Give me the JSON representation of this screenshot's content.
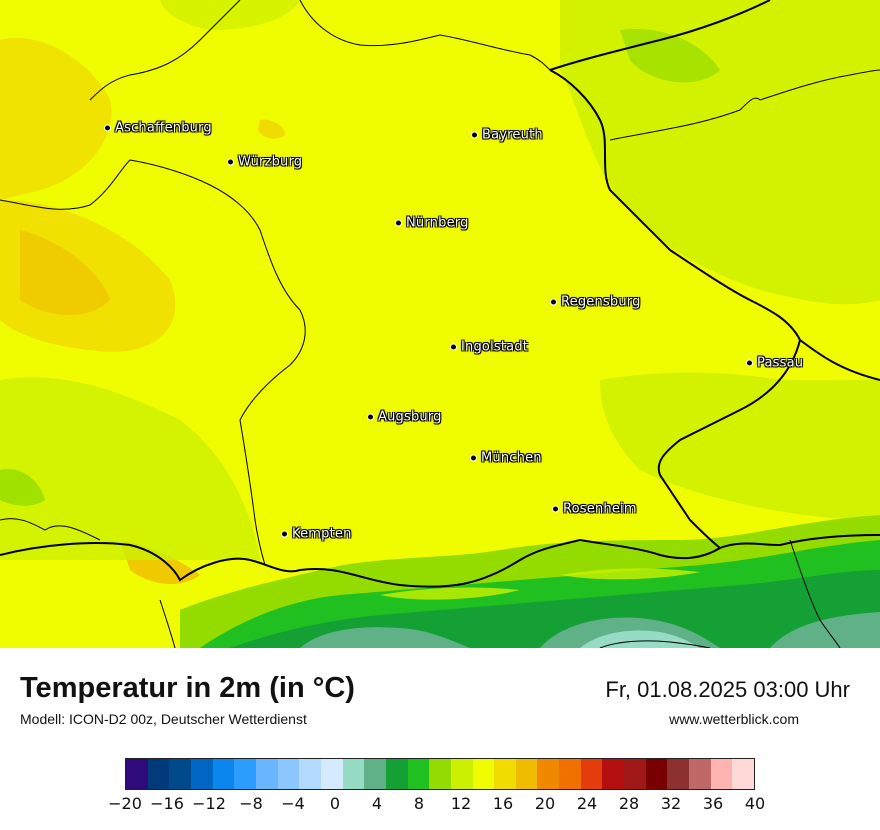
{
  "title": "Temperatur in 2m (in °C)",
  "model": "Modell: ICON-D2 00z, Deutscher Wetterdienst",
  "datetime": "Fr, 01.08.2025 03:00 Uhr",
  "website": "www.wetterblick.com",
  "cities": [
    {
      "name": "Aschaffenburg"
    },
    {
      "name": "Würzburg"
    },
    {
      "name": "Bayreuth"
    },
    {
      "name": "Nürnberg"
    },
    {
      "name": "Regensburg"
    },
    {
      "name": "Ingolstadt"
    },
    {
      "name": "Passau"
    },
    {
      "name": "Augsburg"
    },
    {
      "name": "München"
    },
    {
      "name": "Rosenheim"
    },
    {
      "name": "Kempten"
    }
  ],
  "legend": {
    "colors": [
      "#2e0a7a",
      "#003a7a",
      "#004a8c",
      "#0066c4",
      "#0a86ee",
      "#2c9cff",
      "#69b6ff",
      "#8cc6ff",
      "#b4d9ff",
      "#d6eaff",
      "#96dcc4",
      "#60b088",
      "#14a034",
      "#20c020",
      "#94dc00",
      "#ccf000",
      "#f0fc00",
      "#f0dc00",
      "#f0bc00",
      "#f08800",
      "#f07000",
      "#e43c0c",
      "#b41010",
      "#a01818",
      "#780000",
      "#8c3030",
      "#c06868",
      "#ffb4b4",
      "#ffd8d8"
    ],
    "ticks": [
      "−20",
      "−16",
      "−12",
      "−8",
      "−4",
      "0",
      "4",
      "8",
      "12",
      "16",
      "20",
      "24",
      "28",
      "32",
      "36",
      "40"
    ]
  }
}
